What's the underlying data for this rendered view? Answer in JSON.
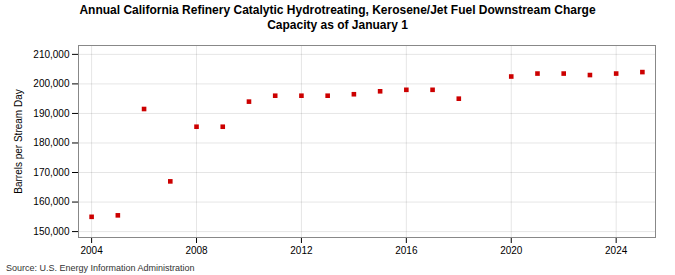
{
  "chart_data": {
    "type": "scatter",
    "title": "Annual California Refinery Catalytic Hydrotreating, Kerosene/Jet Fuel Downstream Charge\nCapacity as of January 1",
    "ylabel": "Barrels per Stream Day",
    "source": "Source: U.S. Energy Information Administration",
    "x": [
      2004,
      2005,
      2006,
      2007,
      2008,
      2009,
      2010,
      2011,
      2012,
      2013,
      2014,
      2015,
      2016,
      2017,
      2018,
      2020,
      2021,
      2022,
      2023,
      2024,
      2025
    ],
    "values": [
      155000,
      155500,
      191500,
      167000,
      185500,
      185500,
      194000,
      196000,
      196000,
      196000,
      196500,
      197500,
      198000,
      198000,
      195000,
      202500,
      203500,
      203500,
      203000,
      203500,
      204000
    ],
    "color": "#cc0000",
    "marker": "square",
    "xlim": [
      2003.5,
      2025.5
    ],
    "xticks": [
      2004,
      2008,
      2012,
      2016,
      2020,
      2024
    ],
    "ylim": [
      148000,
      213000
    ],
    "yticks": [
      {
        "value": 150000,
        "label": "150,000"
      },
      {
        "value": 160000,
        "label": "160,000"
      },
      {
        "value": 170000,
        "label": "170,000"
      },
      {
        "value": 180000,
        "label": "180,000"
      },
      {
        "value": 190000,
        "label": "190,000"
      },
      {
        "value": 200000,
        "label": "200,000"
      },
      {
        "value": 210000,
        "label": "210,000"
      }
    ],
    "grid": true
  }
}
